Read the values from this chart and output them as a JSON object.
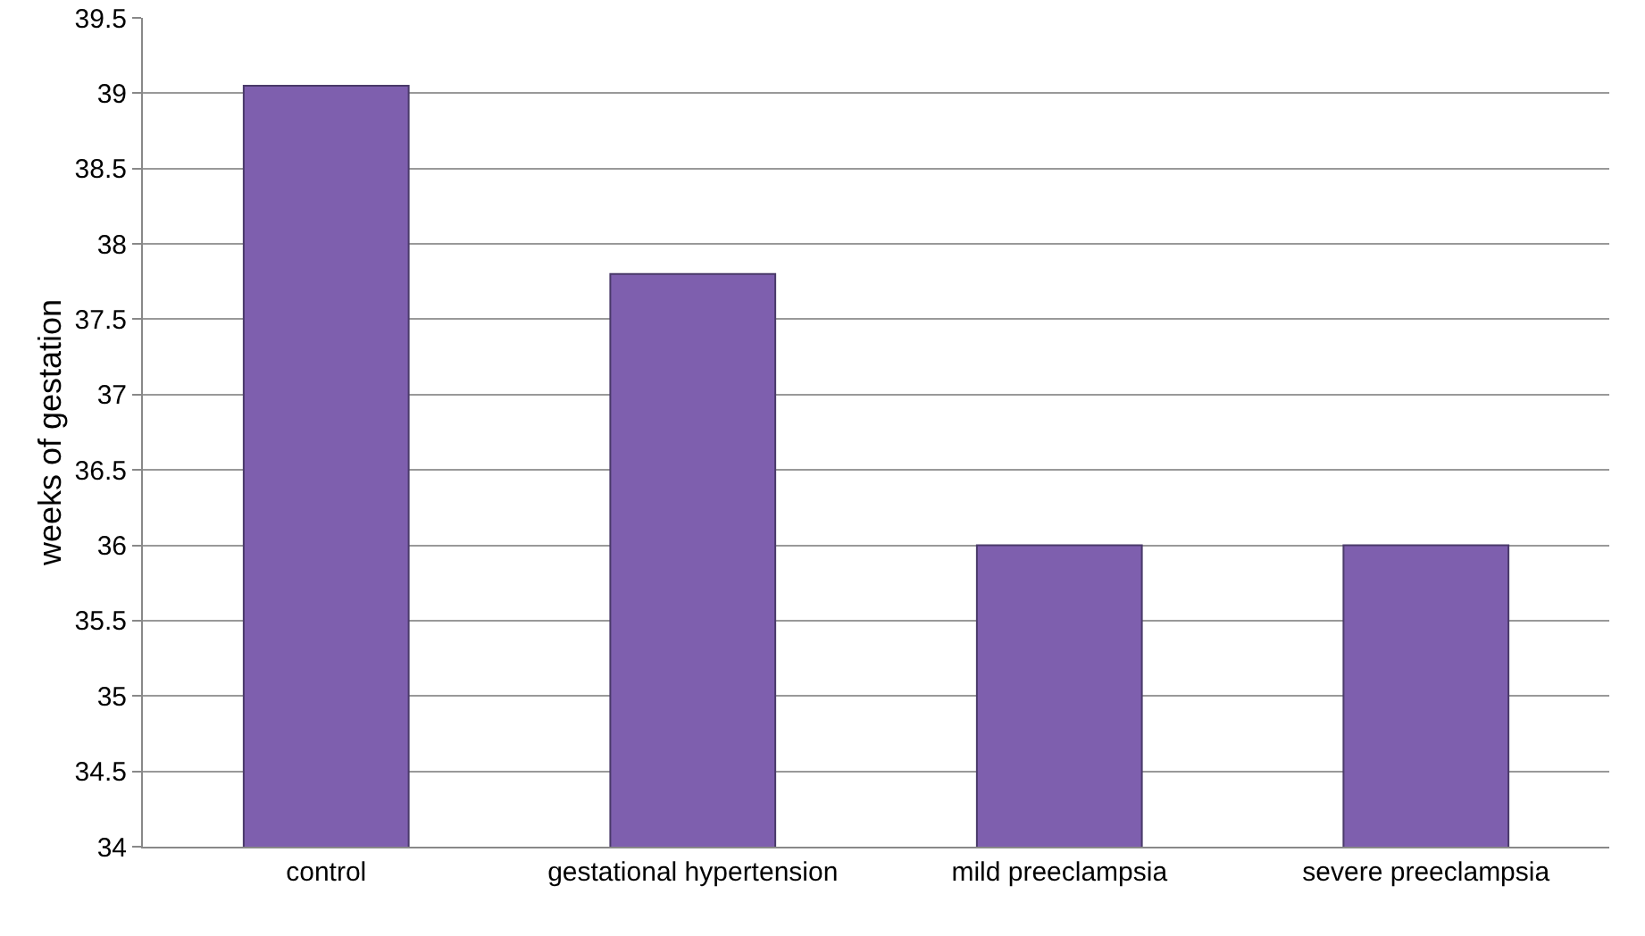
{
  "chart_data": {
    "type": "bar",
    "ylabel": "weeks of gestation",
    "categories": [
      "control",
      "gestational hypertension",
      "mild preeclampsia",
      "severe preeclampsia"
    ],
    "values": [
      39.05,
      37.8,
      36.0,
      36.0
    ],
    "color": "#7e5fae",
    "ylim": [
      34,
      39.5
    ],
    "yticks": [
      34,
      34.5,
      35,
      35.5,
      36,
      36.5,
      37,
      37.5,
      38,
      38.5,
      39,
      39.5
    ],
    "grid": "y"
  }
}
